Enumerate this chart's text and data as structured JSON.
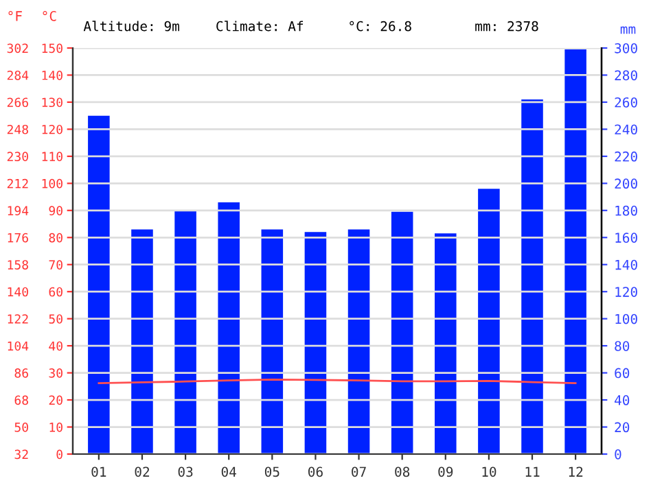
{
  "chart_data": {
    "type": "bar",
    "categories": [
      "01",
      "02",
      "03",
      "04",
      "05",
      "06",
      "07",
      "08",
      "09",
      "10",
      "11",
      "12"
    ],
    "series": [
      {
        "axis": "y2",
        "color": "#0022ff",
        "values": [
          250,
          166,
          180,
          186,
          166,
          164,
          166,
          179,
          163,
          196,
          262,
          299
        ]
      },
      {
        "type": "line",
        "axis": "y",
        "color": "#ff5050",
        "values": [
          26.2,
          26.5,
          26.8,
          27.2,
          27.5,
          27.4,
          27.2,
          26.9,
          26.9,
          27.0,
          26.6,
          26.2
        ]
      }
    ],
    "ylabel": "°C",
    "y2label": "mm",
    "y3label": "°F",
    "ylim": [
      0,
      150
    ],
    "yticks": [
      0,
      10,
      20,
      30,
      40,
      50,
      60,
      70,
      80,
      90,
      100,
      110,
      120,
      130,
      140,
      150
    ],
    "y2lim": [
      0,
      300
    ],
    "y2ticks": [
      0,
      20,
      40,
      60,
      80,
      100,
      120,
      140,
      160,
      180,
      200,
      220,
      240,
      260,
      280,
      300
    ],
    "y3lim": [
      32,
      302
    ],
    "y3ticks": [
      32,
      50,
      68,
      86,
      104,
      122,
      140,
      158,
      176,
      194,
      212,
      230,
      248,
      266,
      284,
      302
    ],
    "annotations": [
      "Altitude: 9m",
      "Climate: Af",
      "°C: 26.8",
      "mm: 2378"
    ],
    "grid": "y",
    "marker": "none",
    "line_style": "solid",
    "legend": false
  }
}
